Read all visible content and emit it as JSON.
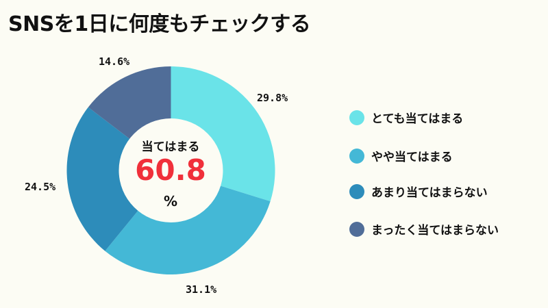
{
  "title": "SNSを1日に何度もチェックする",
  "center": {
    "label": "当てはまる",
    "value": "60.8",
    "unit": "%"
  },
  "colors": {
    "background": "#fcfcf4",
    "highlight": "#f0303a"
  },
  "slice_labels": [
    "29.8%",
    "31.1%",
    "24.5%",
    "14.6%"
  ],
  "legend": [
    {
      "label": "とても当てはまる",
      "color": "#6ae3e8"
    },
    {
      "label": "やや当てはまる",
      "color": "#44b8d6"
    },
    {
      "label": "あまり当てはまらない",
      "color": "#2d8cba"
    },
    {
      "label": "まったく当てはまらない",
      "color": "#506d98"
    }
  ],
  "chart_data": {
    "type": "pie",
    "variant": "donut",
    "title": "SNSを1日に何度もチェックする",
    "categories": [
      "とても当てはまる",
      "やや当てはまる",
      "あまり当てはまらない",
      "まったく当てはまらない"
    ],
    "values": [
      29.8,
      31.1,
      24.5,
      14.6
    ],
    "unit": "%",
    "colors": [
      "#6ae3e8",
      "#44b8d6",
      "#2d8cba",
      "#506d98"
    ],
    "start_angle": "12 o'clock",
    "direction": "clockwise",
    "center_annotation": {
      "label": "当てはまる",
      "value": 60.8,
      "unit": "%"
    },
    "legend_position": "right"
  }
}
